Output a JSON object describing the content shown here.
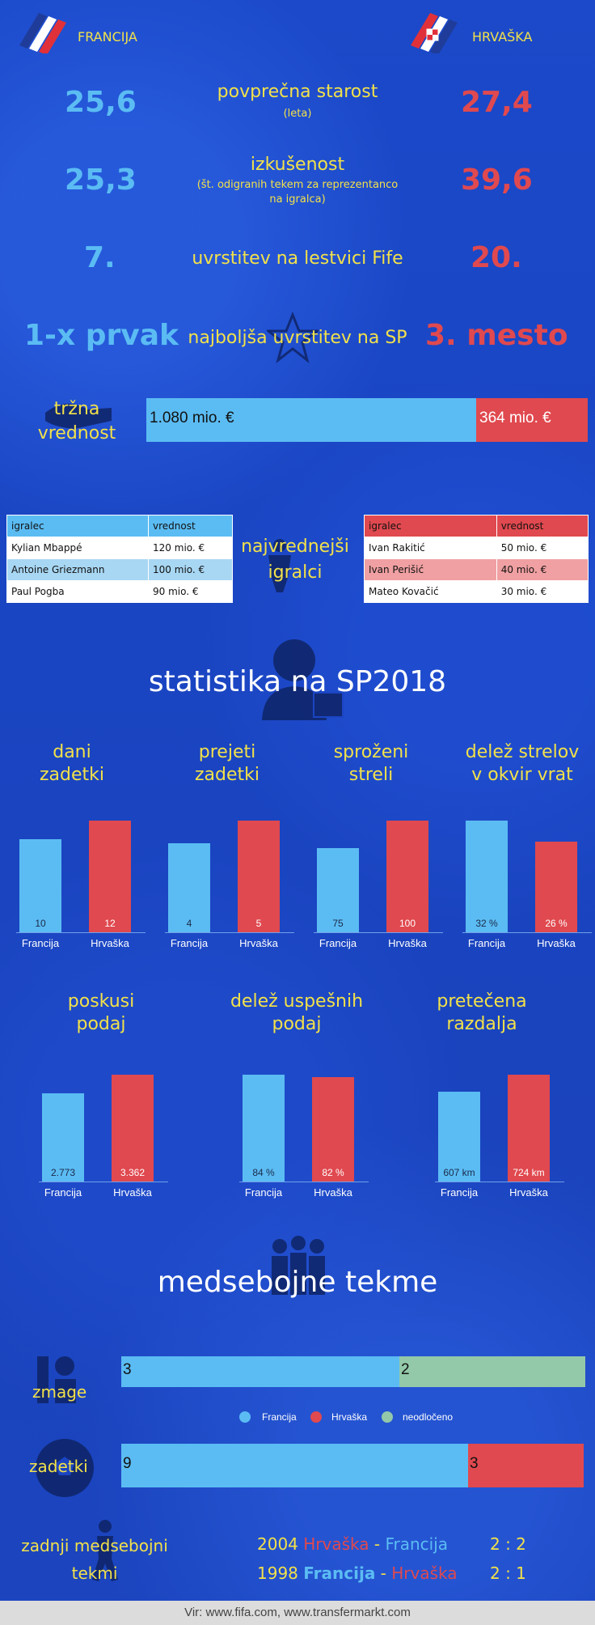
{
  "header": {
    "team_fr": "FRANCIJA",
    "team_hr": "HRVAŠKA"
  },
  "comparisons": {
    "age": {
      "fr": "25,6",
      "label": "povprečna starost",
      "sub": "(leta)",
      "hr": "27,4"
    },
    "experience": {
      "fr": "25,3",
      "label": "izkušenost",
      "sub": "(št. odigranih tekem za reprezentanco na igralca)",
      "hr": "39,6"
    },
    "fifa": {
      "fr": "7.",
      "label": "uvrstitev na lestvici Fife",
      "hr": "20."
    },
    "best": {
      "fr": "1-x prvak",
      "label": "najboljša uvrstitev na SP",
      "hr": "3. mesto"
    }
  },
  "market_value": {
    "label_1": "tržna",
    "label_2": "vrednost",
    "fr_text": "1.080 mio. €",
    "hr_text": "364 mio. €",
    "fr_value": 1080,
    "hr_value": 364
  },
  "valuable": {
    "label_1": "najvrednejši",
    "label_2": "igralci",
    "header": [
      "igralec",
      "vrednost"
    ],
    "fr": [
      [
        "Kylian Mbappé",
        "120 mio. €"
      ],
      [
        "Antoine Griezmann",
        "100 mio. €"
      ],
      [
        "Paul Pogba",
        "90 mio. €"
      ]
    ],
    "hr": [
      [
        "Ivan Rakitić",
        "50 mio. €"
      ],
      [
        "Ivan Perišić",
        "40 mio. €"
      ],
      [
        "Mateo Kovačić",
        "30 mio. €"
      ]
    ]
  },
  "stats_title": "statistika na SP2018",
  "h2h_title": "medsebojne tekme",
  "legend": {
    "fr": "Francija",
    "hr": "Hrvaška",
    "draw": "neodločeno"
  },
  "h2h": {
    "wins_label": "zmage",
    "goals_label": "zadetki",
    "wins": {
      "fr": 3,
      "hr": 0,
      "draw": 2
    },
    "goals": {
      "fr": 9,
      "hr": 3
    }
  },
  "last_matches": {
    "label_1": "zadnji medsebojni",
    "label_2": "tekmi",
    "m1": {
      "year": "2004",
      "home": "Hrvaška",
      "sep": " - ",
      "away": "Francija",
      "score": "2 : 2"
    },
    "m2": {
      "year": "1998",
      "home": "Francija",
      "sep": " - ",
      "away": "Hrvaška",
      "score": "2 : 1"
    }
  },
  "footer": "Vir: www.fifa.com, www.transfermarkt.com",
  "colors": {
    "fr": "#5bbcf3",
    "hr": "#e0494f",
    "draw": "#93c9a9",
    "text": "#f2e14a"
  },
  "chart_data": [
    {
      "type": "bar",
      "title": "dani zadetki",
      "categories": [
        "Francija",
        "Hrvaška"
      ],
      "values": [
        10,
        12
      ],
      "labels": [
        "10",
        "12"
      ]
    },
    {
      "type": "bar",
      "title": "prejeti zadetki",
      "categories": [
        "Francija",
        "Hrvaška"
      ],
      "values": [
        4,
        5
      ],
      "labels": [
        "4",
        "5"
      ]
    },
    {
      "type": "bar",
      "title": "sproženi streli",
      "categories": [
        "Francija",
        "Hrvaška"
      ],
      "values": [
        75,
        100
      ],
      "labels": [
        "75",
        "100"
      ]
    },
    {
      "type": "bar",
      "title": "delež strelov v okvir vrat",
      "categories": [
        "Francija",
        "Hrvaška"
      ],
      "values": [
        32,
        26
      ],
      "labels": [
        "32 %",
        "26 %"
      ]
    },
    {
      "type": "bar",
      "title": "poskusi podaj",
      "categories": [
        "Francija",
        "Hrvaška"
      ],
      "values": [
        2773,
        3362
      ],
      "labels": [
        "2.773",
        "3.362"
      ]
    },
    {
      "type": "bar",
      "title": "delež uspešnih podaj",
      "categories": [
        "Francija",
        "Hrvaška"
      ],
      "values": [
        84,
        82
      ],
      "labels": [
        "84 %",
        "82 %"
      ]
    },
    {
      "type": "bar",
      "title": "pretečena razdalja",
      "categories": [
        "Francija",
        "Hrvaška"
      ],
      "values": [
        607,
        724
      ],
      "labels": [
        "607 km",
        "724 km"
      ]
    }
  ]
}
